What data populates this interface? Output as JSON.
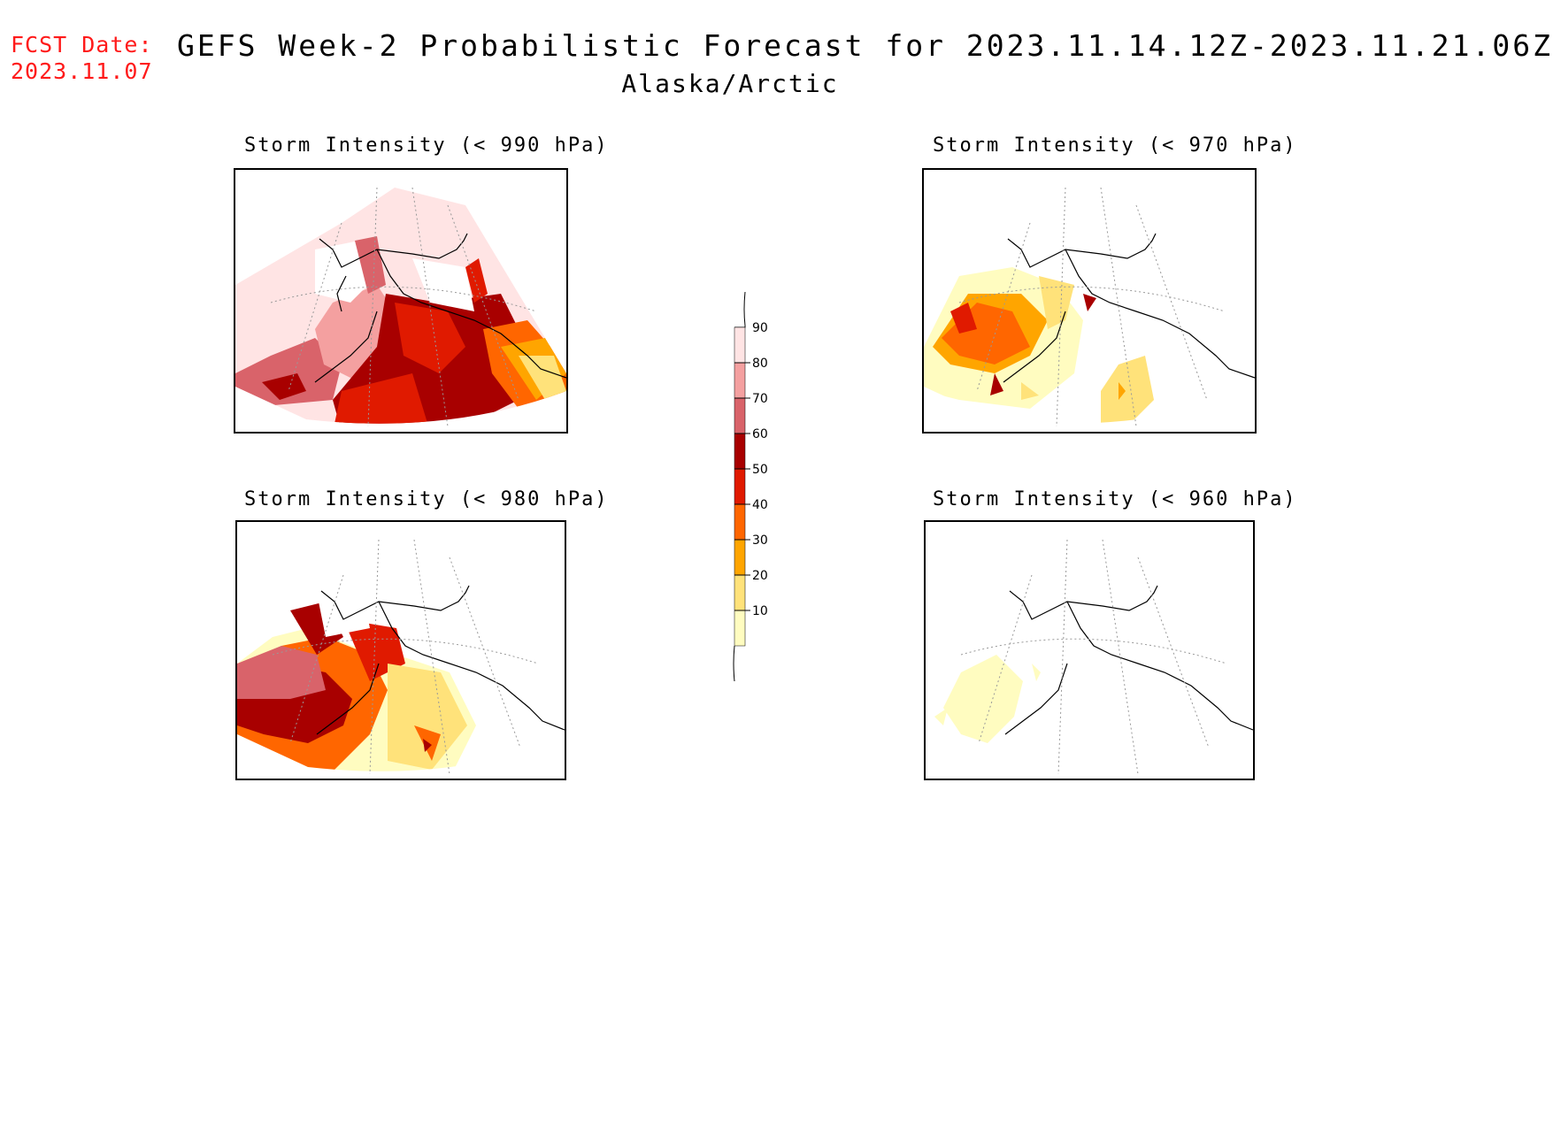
{
  "header": {
    "fcst_label": "FCST Date:",
    "fcst_date": "2023.11.07",
    "title": "GEFS Week-2 Probabilistic Forecast for 2023.11.14.12Z-2023.11.21.06Z",
    "region": "Alaska/Arctic"
  },
  "panels": [
    {
      "title": "Storm Intensity (< 990 hPa)"
    },
    {
      "title": "Storm Intensity (< 970 hPa)"
    },
    {
      "title": "Storm Intensity (< 980 hPa)"
    },
    {
      "title": "Storm Intensity (< 960 hPa)"
    }
  ],
  "colorbar": {
    "labels": [
      "90",
      "80",
      "70",
      "60",
      "50",
      "40",
      "30",
      "20",
      "10"
    ],
    "colors": [
      "#ffe4e4",
      "#f4a0a0",
      "#d9636a",
      "#a80000",
      "#e01a00",
      "#ff6600",
      "#ffa500",
      "#ffe27a",
      "#fffcc0"
    ]
  }
}
